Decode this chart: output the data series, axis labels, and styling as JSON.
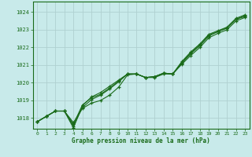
{
  "background_color": "#c8eaea",
  "grid_color": "#b0d0d0",
  "line_color": "#1a6b1a",
  "xlabel": "Graphe pression niveau de la mer (hPa)",
  "xlim": [
    -0.5,
    23.5
  ],
  "ylim": [
    1017.4,
    1024.6
  ],
  "yticks": [
    1018,
    1019,
    1020,
    1021,
    1022,
    1023,
    1024
  ],
  "xticks": [
    0,
    1,
    2,
    3,
    4,
    5,
    6,
    7,
    8,
    9,
    10,
    11,
    12,
    13,
    14,
    15,
    16,
    17,
    18,
    19,
    20,
    21,
    22,
    23
  ],
  "series": [
    [
      1017.8,
      1018.1,
      1018.4,
      1018.4,
      1017.75,
      1018.55,
      1018.85,
      1019.0,
      1019.3,
      1019.75,
      1020.45,
      1020.5,
      1020.3,
      1020.3,
      1020.5,
      1020.5,
      1021.05,
      1021.55,
      1022.0,
      1022.55,
      1022.8,
      1023.0,
      1023.5,
      1023.7
    ],
    [
      1017.8,
      1018.1,
      1018.4,
      1018.4,
      1017.55,
      1018.6,
      1019.05,
      1019.3,
      1019.65,
      1020.05,
      1020.5,
      1020.5,
      1020.3,
      1020.35,
      1020.55,
      1020.5,
      1021.1,
      1021.65,
      1022.1,
      1022.65,
      1022.9,
      1023.1,
      1023.6,
      1023.75
    ],
    [
      1017.8,
      1018.1,
      1018.4,
      1018.4,
      1017.65,
      1018.75,
      1019.15,
      1019.35,
      1019.7,
      1020.1,
      1020.5,
      1020.5,
      1020.3,
      1020.35,
      1020.55,
      1020.5,
      1021.15,
      1021.7,
      1022.15,
      1022.7,
      1022.9,
      1023.1,
      1023.6,
      1023.8
    ],
    [
      1017.8,
      1018.1,
      1018.4,
      1018.4,
      1017.45,
      1018.7,
      1019.2,
      1019.45,
      1019.8,
      1020.15,
      1020.5,
      1020.5,
      1020.3,
      1020.35,
      1020.55,
      1020.5,
      1021.2,
      1021.75,
      1022.2,
      1022.75,
      1022.95,
      1023.15,
      1023.65,
      1023.85
    ]
  ]
}
